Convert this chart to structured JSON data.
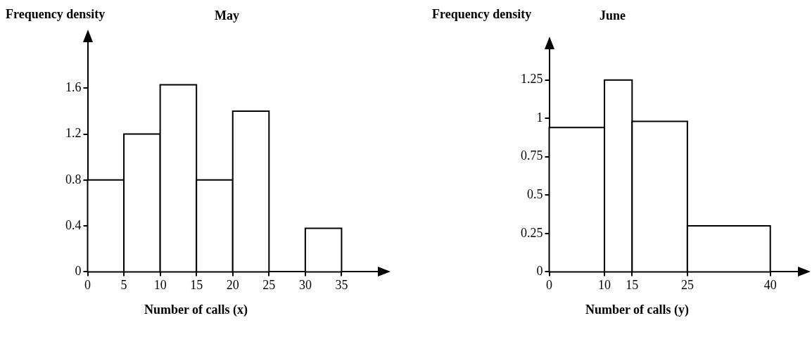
{
  "chart_data": [
    {
      "type": "histogram",
      "title": "May",
      "ylabel": "Frequency density",
      "xlabel": "Number of calls (x)",
      "color": "#ffffff",
      "bins": [
        0,
        5,
        10,
        15,
        20,
        25,
        30,
        35
      ],
      "values": [
        0.8,
        1.2,
        1.63,
        0.8,
        1.4,
        0,
        0.38
      ],
      "xlim": [
        0,
        40
      ],
      "xticks": [
        0,
        5,
        10,
        15,
        20,
        25,
        30,
        35
      ],
      "ylim": [
        0,
        2
      ],
      "yticks": [
        0,
        0.4,
        0.8,
        1.2,
        1.6
      ],
      "grid": false,
      "legend": false
    },
    {
      "type": "histogram",
      "title": "June",
      "ylabel": "Frequency density",
      "xlabel": "Number of calls (y)",
      "color": "#ffffff",
      "bins": [
        0,
        10,
        15,
        25,
        40
      ],
      "values": [
        0.94,
        1.25,
        0.98,
        0.3
      ],
      "xlim": [
        0,
        45
      ],
      "xticks": [
        0,
        10,
        15,
        25,
        40
      ],
      "ylim": [
        0,
        1.45
      ],
      "yticks": [
        0,
        0.25,
        0.5,
        0.75,
        1,
        1.25
      ],
      "grid": false,
      "legend": false
    }
  ]
}
